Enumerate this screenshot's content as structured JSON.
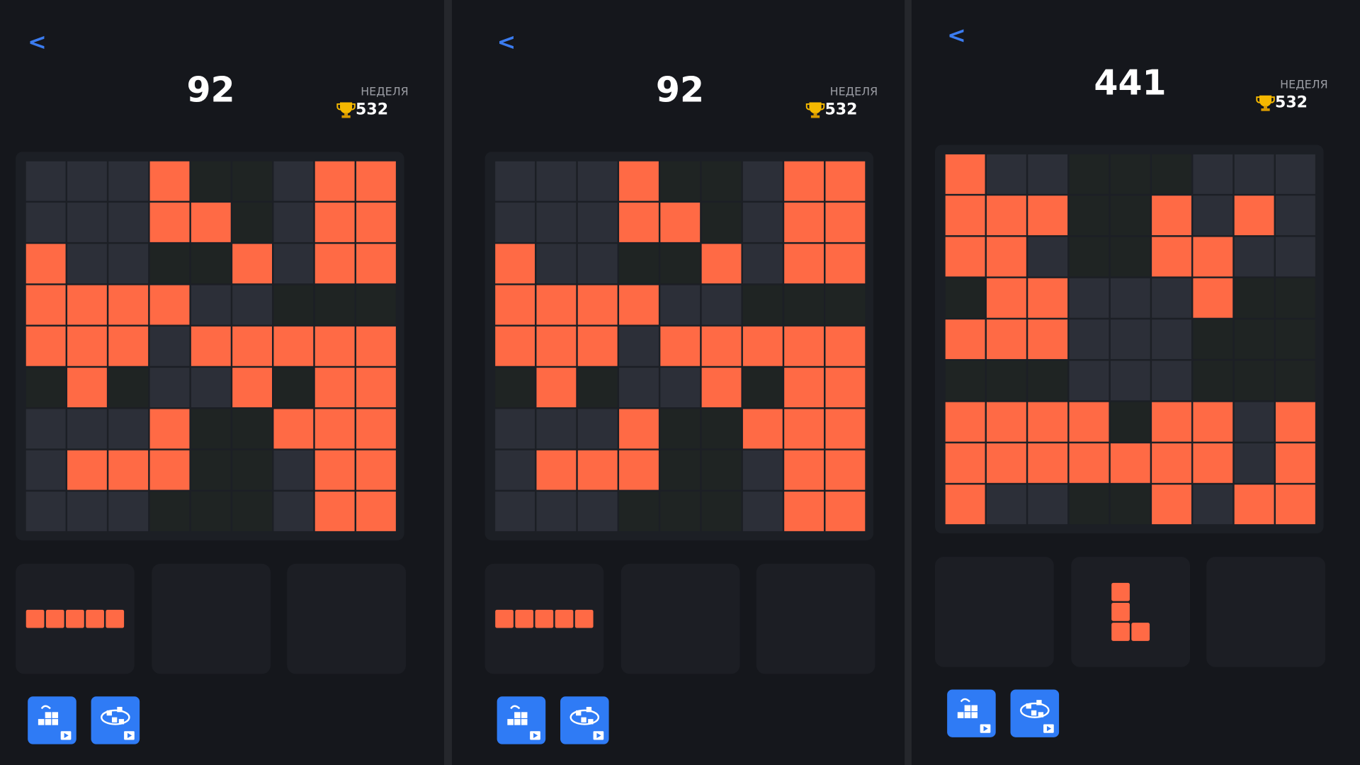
{
  "panels": [
    {
      "back": "<",
      "score": 92,
      "period": "НЕДЕЛЯ",
      "best": 532
    },
    {
      "back": "<",
      "score": 92,
      "period": "НЕДЕЛЯ",
      "best": 532
    },
    {
      "back": "<",
      "score": 441,
      "period": "НЕДЕЛЯ",
      "best": 532
    }
  ]
}
